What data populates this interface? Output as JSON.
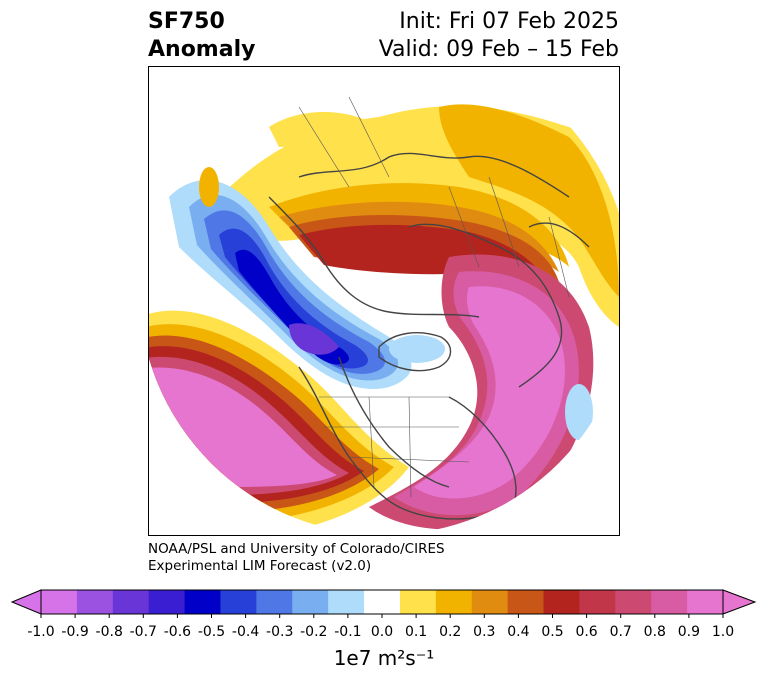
{
  "title": {
    "left_line1": "SF750",
    "left_line2": "Anomaly",
    "right_line1": "Init: Fri 07 Feb 2025",
    "right_line2": "Valid: 09 Feb – 15 Feb"
  },
  "credit": {
    "line1": "NOAA/PSL and University of Colorado/CIRES",
    "line2": "Experimental LIM Forecast (v2.0)"
  },
  "colorbar": {
    "label": "1e7 m²s⁻¹",
    "ticks": [
      "-1.0",
      "-0.9",
      "-0.8",
      "-0.7",
      "-0.6",
      "-0.5",
      "-0.4",
      "-0.3",
      "-0.2",
      "-0.1",
      "0.0",
      "0.1",
      "0.2",
      "0.3",
      "0.4",
      "0.5",
      "0.6",
      "0.7",
      "0.8",
      "0.9",
      "1.0"
    ],
    "colors": [
      "#d773e8",
      "#9b52e0",
      "#6a35d6",
      "#3a1fd2",
      "#0000c8",
      "#2740d8",
      "#4f78e6",
      "#79aef0",
      "#aedcfa",
      "#ffffff",
      "#ffe14c",
      "#f2b300",
      "#e08c10",
      "#c85616",
      "#b3241e",
      "#c2364a",
      "#cc4a72",
      "#d85ca4",
      "#e575cf"
    ],
    "under_color": "#d773e8",
    "over_color": "#e575cf"
  }
}
